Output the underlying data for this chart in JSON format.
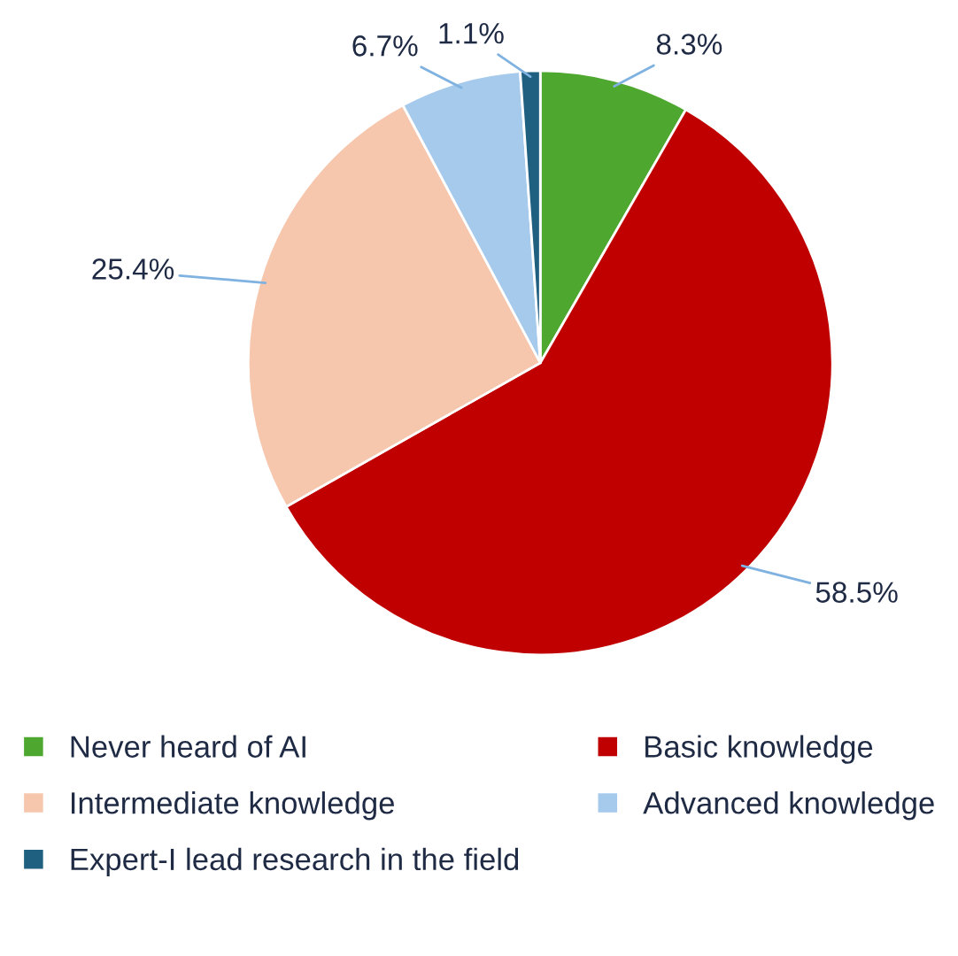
{
  "chart_data": {
    "type": "pie",
    "categories": [
      "Never heard of AI",
      "Basic knowledge",
      "Intermediate knowledge",
      "Advanced knowledge",
      "Expert-I lead research in the field"
    ],
    "values": [
      8.3,
      58.5,
      25.4,
      6.7,
      1.1
    ],
    "colors": [
      "#4ea72e",
      "#c00000",
      "#f6c6ad",
      "#a6caec",
      "#1f5f7f"
    ],
    "value_labels": [
      "8.3%",
      "58.5%",
      "25.4%",
      "6.7%",
      "1.1%"
    ],
    "legend": "bottom"
  }
}
